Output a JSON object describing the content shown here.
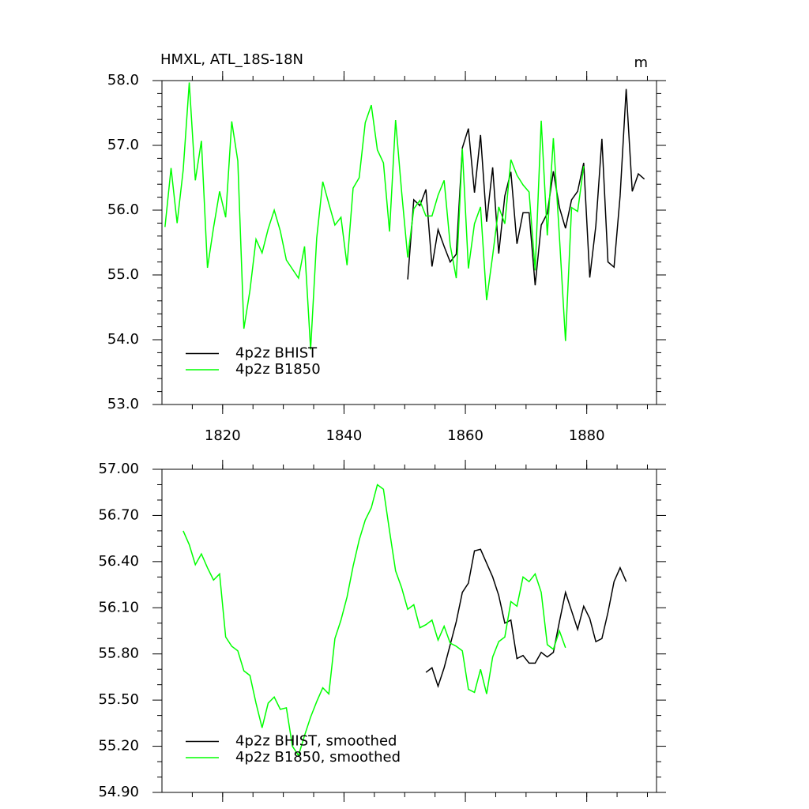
{
  "chart_data": [
    {
      "type": "line",
      "title": "HMXL, ATL_18S-18N",
      "units": "m",
      "xlim": [
        1810,
        1891.5
      ],
      "xticks": [
        1820,
        1840,
        1860,
        1880
      ],
      "ylim": [
        53,
        58
      ],
      "yticks": [
        {
          "value": 53,
          "label": "53.0"
        },
        {
          "value": 54,
          "label": "54.0"
        },
        {
          "value": 55,
          "label": "55.0"
        },
        {
          "value": 56,
          "label": "56.0"
        },
        {
          "value": 57,
          "label": "57.0"
        },
        {
          "value": 58,
          "label": "58.0"
        }
      ],
      "legend": "lower left",
      "series": [
        {
          "name": "4p2z BHIST",
          "color": "#000000",
          "x": [
            1850.5,
            1851.5,
            1852.5,
            1853.5,
            1854.5,
            1855.5,
            1856.5,
            1857.5,
            1858.5,
            1859.5,
            1860.5,
            1861.5,
            1862.5,
            1863.5,
            1864.5,
            1865.5,
            1866.5,
            1867.5,
            1868.5,
            1869.5,
            1870.5,
            1871.5,
            1872.5,
            1873.5,
            1874.5,
            1875.5,
            1876.5,
            1877.5,
            1878.5,
            1879.5,
            1880.5,
            1881.5,
            1882.5,
            1883.5,
            1884.5,
            1885.5,
            1886.5,
            1887.5,
            1888.5,
            1889.5
          ],
          "values": [
            54.93,
            56.16,
            56.07,
            56.32,
            55.13,
            55.7,
            55.44,
            55.2,
            55.32,
            56.96,
            57.26,
            56.27,
            57.16,
            55.82,
            56.66,
            55.33,
            56.22,
            56.59,
            55.48,
            55.96,
            55.96,
            54.84,
            55.77,
            55.95,
            56.6,
            56.04,
            55.72,
            56.16,
            56.29,
            56.73,
            54.96,
            55.76,
            57.1,
            55.2,
            55.12,
            56.22,
            57.87,
            56.29,
            56.56,
            56.48
          ]
        },
        {
          "name": "4p2z B1850",
          "color": "#00ff00",
          "x": [
            1810.5,
            1811.5,
            1812.5,
            1813.5,
            1814.5,
            1815.5,
            1816.5,
            1817.5,
            1818.5,
            1819.5,
            1820.5,
            1821.5,
            1822.5,
            1823.5,
            1824.5,
            1825.5,
            1826.5,
            1827.5,
            1828.5,
            1829.5,
            1830.5,
            1831.5,
            1832.5,
            1833.5,
            1834.5,
            1835.5,
            1836.5,
            1837.5,
            1838.5,
            1839.5,
            1840.5,
            1841.5,
            1842.5,
            1843.5,
            1844.5,
            1845.5,
            1846.5,
            1847.5,
            1848.5,
            1849.5,
            1850.5,
            1851.5,
            1852.5,
            1853.5,
            1854.5,
            1855.5,
            1856.5,
            1857.5,
            1858.5,
            1859.5,
            1860.5,
            1861.5,
            1862.5,
            1863.5,
            1864.5,
            1865.5,
            1866.5,
            1867.5,
            1868.5,
            1869.5,
            1870.5,
            1871.5,
            1872.5,
            1873.5,
            1874.5,
            1875.5,
            1876.5,
            1877.5,
            1878.5,
            1879.5
          ],
          "values": [
            55.74,
            56.65,
            55.8,
            56.62,
            57.97,
            56.46,
            57.07,
            55.11,
            55.73,
            56.29,
            55.89,
            57.37,
            56.76,
            54.17,
            54.76,
            55.55,
            55.34,
            55.71,
            56.0,
            55.68,
            55.23,
            55.09,
            54.95,
            55.44,
            53.85,
            55.57,
            56.44,
            56.1,
            55.77,
            55.89,
            55.15,
            56.34,
            56.5,
            57.35,
            57.62,
            56.93,
            56.73,
            55.67,
            57.39,
            56.28,
            55.27,
            56.02,
            56.15,
            55.91,
            55.91,
            56.23,
            56.46,
            55.46,
            54.95,
            56.95,
            55.1,
            55.79,
            56.05,
            54.61,
            55.3,
            56.05,
            55.79,
            56.78,
            56.54,
            56.39,
            56.28,
            55.07,
            57.38,
            55.61,
            57.11,
            55.59,
            53.98,
            56.04,
            55.98,
            56.68
          ]
        }
      ]
    },
    {
      "type": "line",
      "xlim": [
        1810,
        1891.5
      ],
      "xticks": [
        1820,
        1840,
        1860,
        1880
      ],
      "ylim": [
        54.9,
        57
      ],
      "yticks": [
        {
          "value": 54.9,
          "label": "54.90"
        },
        {
          "value": 55.2,
          "label": "55.20"
        },
        {
          "value": 55.5,
          "label": "55.50"
        },
        {
          "value": 55.8,
          "label": "55.80"
        },
        {
          "value": 56.1,
          "label": "56.10"
        },
        {
          "value": 56.4,
          "label": "56.40"
        },
        {
          "value": 56.7,
          "label": "56.70"
        },
        {
          "value": 57,
          "label": "57.00"
        }
      ],
      "legend": "lower left",
      "series": [
        {
          "name": "4p2z BHIST, smoothed",
          "color": "#000000",
          "x": [
            1853.5,
            1854.5,
            1855.5,
            1856.5,
            1857.5,
            1858.5,
            1859.5,
            1860.5,
            1861.5,
            1862.5,
            1863.5,
            1864.5,
            1865.5,
            1866.5,
            1867.5,
            1868.5,
            1869.5,
            1870.5,
            1871.5,
            1872.5,
            1873.5,
            1874.5,
            1875.5,
            1876.5,
            1877.5,
            1878.5,
            1879.5,
            1880.5,
            1881.5,
            1882.5,
            1883.5,
            1884.5,
            1885.5,
            1886.5
          ],
          "values": [
            55.68,
            55.71,
            55.59,
            55.71,
            55.86,
            56.01,
            56.2,
            56.26,
            56.47,
            56.48,
            56.39,
            56.3,
            56.18,
            56.0,
            56.02,
            55.77,
            55.79,
            55.74,
            55.74,
            55.81,
            55.78,
            55.81,
            56.01,
            56.2,
            56.08,
            55.96,
            56.11,
            56.03,
            55.88,
            55.9,
            56.07,
            56.27,
            56.36,
            56.27
          ]
        },
        {
          "name": "4p2z B1850, smoothed",
          "color": "#00ff00",
          "x": [
            1813.5,
            1814.5,
            1815.5,
            1816.5,
            1817.5,
            1818.5,
            1819.5,
            1820.5,
            1821.5,
            1822.5,
            1823.5,
            1824.5,
            1825.5,
            1826.5,
            1827.5,
            1828.5,
            1829.5,
            1830.5,
            1831.5,
            1832.5,
            1833.5,
            1834.5,
            1835.5,
            1836.5,
            1837.5,
            1838.5,
            1839.5,
            1840.5,
            1841.5,
            1842.5,
            1843.5,
            1844.5,
            1845.5,
            1846.5,
            1847.5,
            1848.5,
            1849.5,
            1850.5,
            1851.5,
            1852.5,
            1853.5,
            1854.5,
            1855.5,
            1856.5,
            1857.5,
            1858.5,
            1859.5,
            1860.5,
            1861.5,
            1862.5,
            1863.5,
            1864.5,
            1865.5,
            1866.5,
            1867.5,
            1868.5,
            1869.5,
            1870.5,
            1871.5,
            1872.5,
            1873.5,
            1874.5,
            1875.5,
            1876.5
          ],
          "values": [
            56.6,
            56.51,
            56.38,
            56.45,
            56.36,
            56.28,
            56.32,
            55.91,
            55.85,
            55.82,
            55.69,
            55.66,
            55.48,
            55.32,
            55.48,
            55.52,
            55.44,
            55.45,
            55.2,
            55.14,
            55.27,
            55.39,
            55.49,
            55.58,
            55.54,
            55.9,
            56.02,
            56.17,
            56.37,
            56.54,
            56.67,
            56.75,
            56.9,
            56.87,
            56.6,
            56.34,
            56.23,
            56.09,
            56.12,
            55.97,
            55.99,
            56.02,
            55.89,
            55.98,
            55.87,
            55.85,
            55.82,
            55.57,
            55.55,
            55.7,
            55.54,
            55.78,
            55.88,
            55.91,
            56.14,
            56.11,
            56.3,
            56.27,
            56.32,
            56.2,
            55.86,
            55.83,
            55.95,
            55.84
          ]
        }
      ]
    }
  ]
}
